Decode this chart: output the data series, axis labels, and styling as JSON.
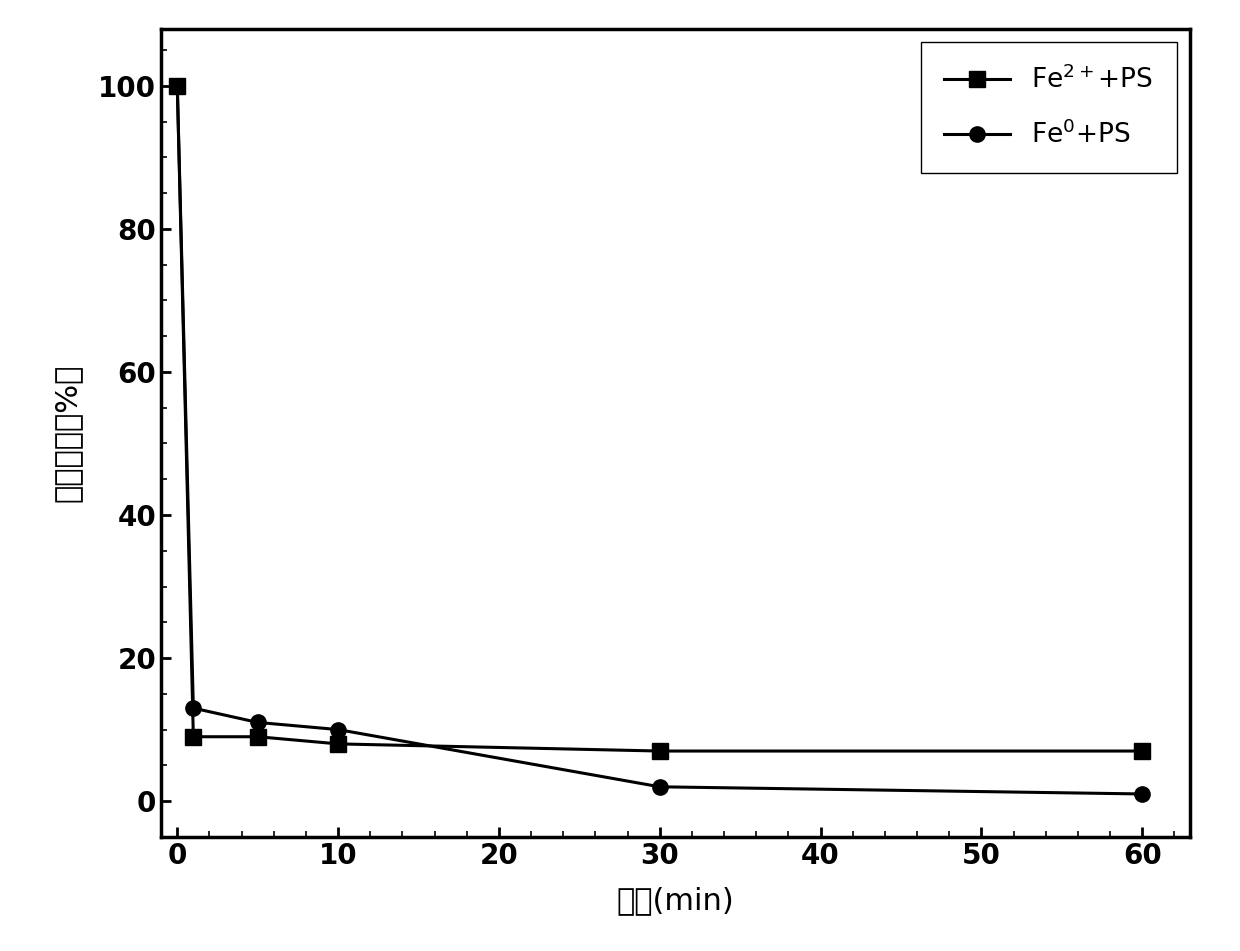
{
  "fe2_x": [
    0,
    1,
    5,
    10,
    30,
    60
  ],
  "fe2_y": [
    100,
    9,
    9,
    8,
    7,
    7
  ],
  "fe0_x": [
    0,
    1,
    5,
    10,
    30,
    60
  ],
  "fe0_y": [
    100,
    13,
    11,
    10,
    2,
    1
  ],
  "line_color": "#000000",
  "marker_fe2": "s",
  "marker_fe0": "o",
  "xlabel": "时间(min)",
  "ylabel": "非剩余率（%）",
  "xlim": [
    -1,
    63
  ],
  "ylim": [
    -5,
    108
  ],
  "xticks": [
    0,
    10,
    20,
    30,
    40,
    50,
    60
  ],
  "yticks": [
    0,
    20,
    40,
    60,
    80,
    100
  ],
  "legend_fe2": "Fe$^{2+}$+PS",
  "legend_fe0": "Fe$^{0}$+PS",
  "background_color": "#ffffff",
  "marker_size": 11,
  "line_width": 2.2,
  "tick_label_fontsize": 20,
  "axis_label_fontsize": 22,
  "legend_fontsize": 19
}
